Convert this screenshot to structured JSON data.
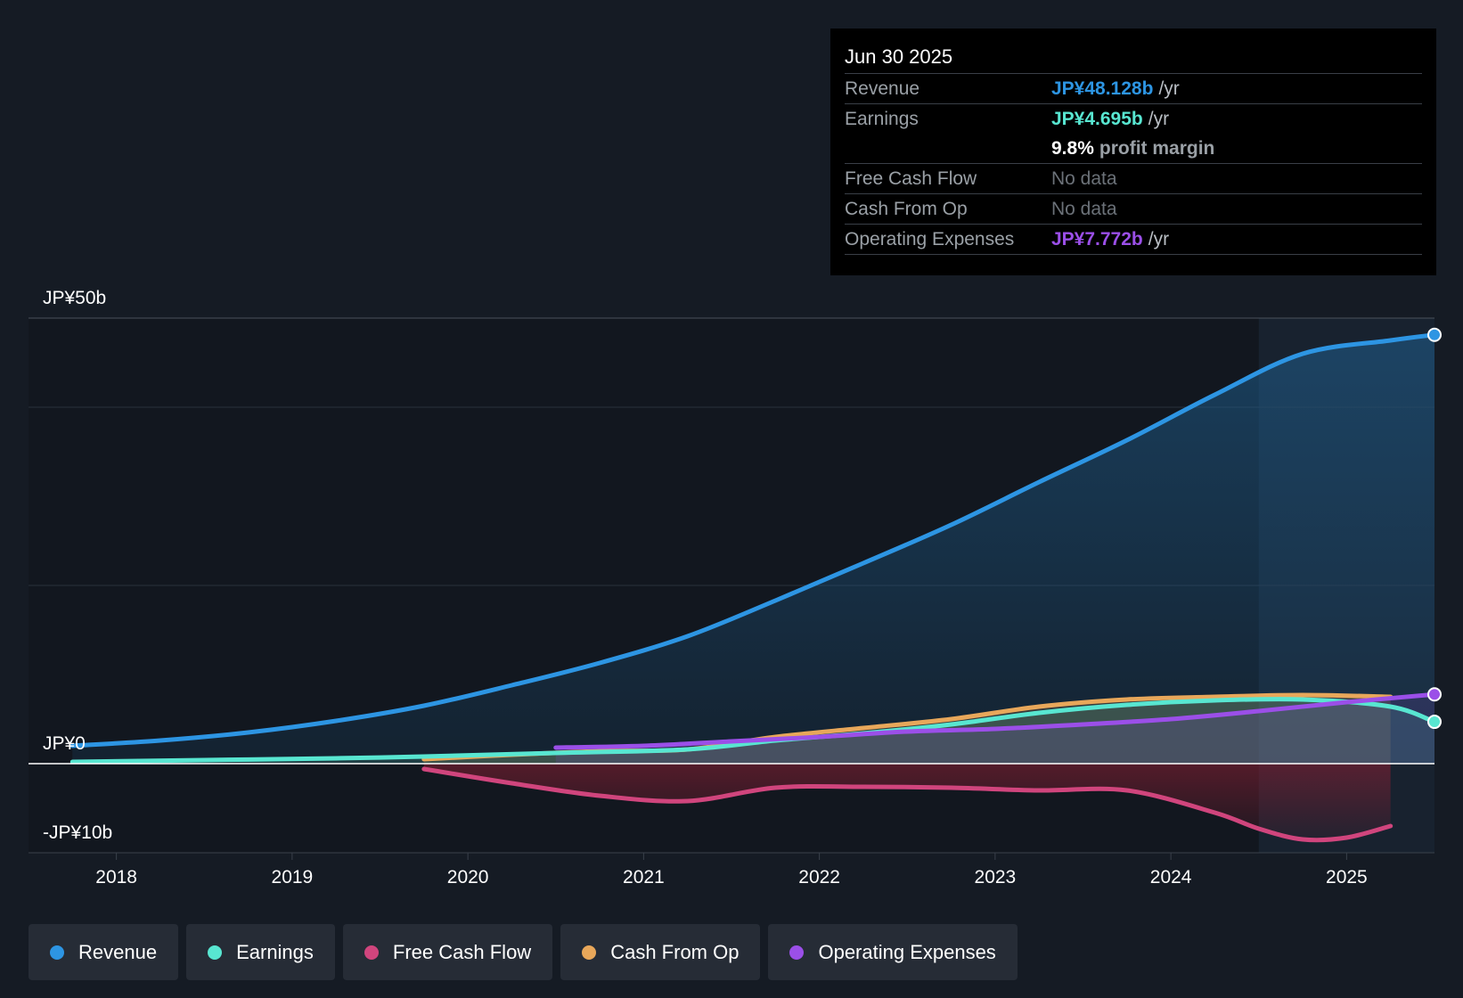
{
  "chart_data": {
    "type": "line",
    "y_axis_labels": [
      "JP¥50b",
      "JP¥0",
      "-JP¥10b"
    ],
    "ylim": [
      -10,
      50
    ],
    "x_tick_labels": [
      "2018",
      "2019",
      "2020",
      "2021",
      "2022",
      "2023",
      "2024",
      "2025"
    ],
    "xlim": [
      2017.5,
      2025.5
    ],
    "forecast_start": 2024.5,
    "series": [
      {
        "name": "Revenue",
        "color": "#2d95e3",
        "x": [
          2017.75,
          2018.25,
          2018.75,
          2019.25,
          2019.75,
          2020.25,
          2020.75,
          2021.25,
          2021.75,
          2022.25,
          2022.75,
          2023.25,
          2023.75,
          2024.25,
          2024.75,
          2025.25,
          2025.5
        ],
        "values": [
          2.0,
          2.6,
          3.5,
          4.8,
          6.5,
          8.8,
          11.3,
          14.3,
          18.3,
          22.5,
          26.8,
          31.6,
          36.3,
          41.4,
          46.0,
          47.5,
          48.128
        ]
      },
      {
        "name": "Earnings",
        "color": "#58e6d1",
        "x": [
          2017.75,
          2018.5,
          2019.25,
          2019.75,
          2020.5,
          2021.25,
          2021.75,
          2022.25,
          2022.75,
          2023.25,
          2023.75,
          2024.25,
          2024.75,
          2025.25,
          2025.5
        ],
        "values": [
          0.2,
          0.4,
          0.6,
          0.8,
          1.2,
          1.6,
          2.6,
          3.4,
          4.4,
          5.7,
          6.6,
          7.1,
          7.2,
          6.4,
          4.695
        ]
      },
      {
        "name": "Free Cash Flow",
        "color": "#d0457d",
        "x": [
          2019.75,
          2020.25,
          2020.75,
          2021.25,
          2021.75,
          2022.25,
          2022.75,
          2023.25,
          2023.75,
          2024.25,
          2024.5,
          2024.75,
          2025.0,
          2025.25
        ],
        "values": [
          -0.6,
          -2.2,
          -3.6,
          -4.2,
          -2.7,
          -2.6,
          -2.7,
          -3.0,
          -3.0,
          -5.5,
          -7.3,
          -8.5,
          -8.3,
          -7.0
        ]
      },
      {
        "name": "Cash From Op",
        "color": "#e8a75a",
        "x": [
          2019.75,
          2020.25,
          2020.75,
          2021.25,
          2021.75,
          2022.25,
          2022.75,
          2023.25,
          2023.75,
          2024.25,
          2024.75,
          2025.25
        ],
        "values": [
          0.5,
          1.0,
          1.4,
          1.6,
          3.0,
          4.0,
          5.0,
          6.4,
          7.2,
          7.5,
          7.7,
          7.5
        ]
      },
      {
        "name": "Operating Expenses",
        "color": "#9b4fe8",
        "x": [
          2020.5,
          2021.0,
          2021.5,
          2022.0,
          2022.5,
          2023.0,
          2023.5,
          2024.0,
          2024.5,
          2025.0,
          2025.5
        ],
        "values": [
          1.8,
          2.0,
          2.5,
          3.0,
          3.6,
          3.9,
          4.4,
          5.0,
          5.9,
          6.9,
          7.772
        ]
      }
    ]
  },
  "tooltip": {
    "date": "Jun 30 2025",
    "revenue_label": "Revenue",
    "revenue_value": "JP¥48.128b",
    "revenue_unit": "/yr",
    "earnings_label": "Earnings",
    "earnings_value": "JP¥4.695b",
    "earnings_unit": "/yr",
    "margin_value": "9.8%",
    "margin_text": "profit margin",
    "fcf_label": "Free Cash Flow",
    "fcf_value": "No data",
    "cfo_label": "Cash From Op",
    "cfo_value": "No data",
    "opex_label": "Operating Expenses",
    "opex_value": "JP¥7.772b",
    "opex_unit": "/yr"
  },
  "legend": [
    {
      "label": "Revenue",
      "color": "#2d95e3"
    },
    {
      "label": "Earnings",
      "color": "#58e6d1"
    },
    {
      "label": "Free Cash Flow",
      "color": "#d0457d"
    },
    {
      "label": "Cash From Op",
      "color": "#e8a75a"
    },
    {
      "label": "Operating Expenses",
      "color": "#9b4fe8"
    }
  ]
}
